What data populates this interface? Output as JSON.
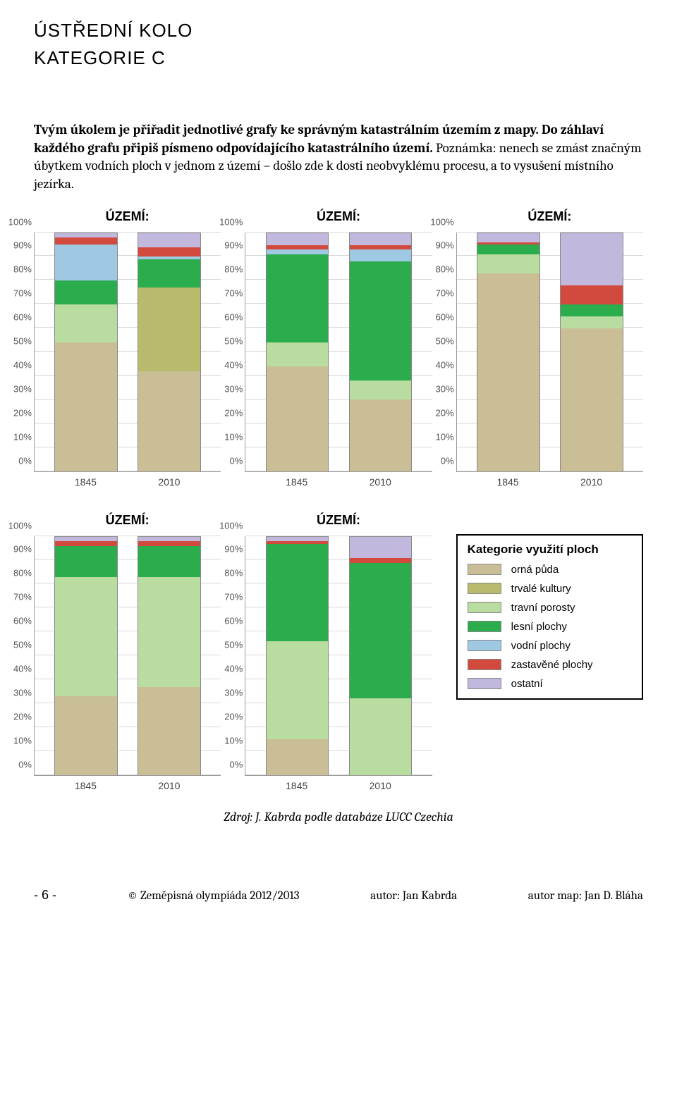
{
  "header": {
    "line1": "ÚSTŘEDNÍ KOLO",
    "line2": "KATEGORIE C"
  },
  "task": {
    "bold": "Tvým úkolem je přiřadit jednotlivé grafy ke správným katastrálním územím z mapy. Do záhlaví každého grafu připiš písmeno odpovídajícího katastrálního území.",
    "note": "Poznámka: nenech se zmást značným úbytkem vodních ploch v jednom z území – došlo zde k dosti neobvyklému procesu, a to vysušení místního jezírka."
  },
  "chart_common": {
    "uzemi_label": "ÚZEMÍ:",
    "tick_labels": [
      "0%",
      "10%",
      "20%",
      "30%",
      "40%",
      "50%",
      "60%",
      "70%",
      "80%",
      "90%",
      "100%"
    ],
    "tick_positions_pct": [
      0,
      10,
      20,
      30,
      40,
      50,
      60,
      70,
      80,
      90,
      100
    ],
    "x_labels": [
      "1845",
      "2010"
    ],
    "grid_color": "#d9d9d9",
    "font_family": "Arial"
  },
  "categories": {
    "order": [
      "orna",
      "trvale",
      "travni",
      "lesni",
      "vodni",
      "zast",
      "ostatni"
    ],
    "colors": {
      "orna": "#c9be95",
      "trvale": "#b7bb6b",
      "travni": "#b9dca0",
      "lesni": "#2bac4d",
      "vodni": "#9fc8e2",
      "zast": "#d24a3e",
      "ostatni": "#c2b8de"
    }
  },
  "charts": [
    {
      "id": "c1",
      "bars": [
        {
          "label": "1845",
          "seg": {
            "orna": 54,
            "trvale": 0,
            "travni": 16,
            "lesni": 10,
            "vodni": 15,
            "zast": 3,
            "ostatni": 2
          }
        },
        {
          "label": "2010",
          "seg": {
            "orna": 42,
            "trvale": 35,
            "travni": 0,
            "lesni": 12,
            "vodni": 1,
            "zast": 4,
            "ostatni": 6
          }
        }
      ]
    },
    {
      "id": "c2",
      "bars": [
        {
          "label": "1845",
          "seg": {
            "orna": 44,
            "trvale": 0,
            "travni": 10,
            "lesni": 37,
            "vodni": 2,
            "zast": 2,
            "ostatni": 5
          }
        },
        {
          "label": "2010",
          "seg": {
            "orna": 30,
            "trvale": 0,
            "travni": 8,
            "lesni": 50,
            "vodni": 5,
            "zast": 2,
            "ostatni": 5
          }
        }
      ]
    },
    {
      "id": "c3",
      "bars": [
        {
          "label": "1845",
          "seg": {
            "orna": 83,
            "trvale": 0,
            "travni": 8,
            "lesni": 4,
            "vodni": 0,
            "zast": 1,
            "ostatni": 4
          }
        },
        {
          "label": "2010",
          "seg": {
            "orna": 60,
            "trvale": 0,
            "travni": 5,
            "lesni": 5,
            "vodni": 0,
            "zast": 8,
            "ostatni": 22
          }
        }
      ]
    },
    {
      "id": "c4",
      "bars": [
        {
          "label": "1845",
          "seg": {
            "orna": 33,
            "trvale": 0,
            "travni": 50,
            "lesni": 13,
            "vodni": 0,
            "zast": 2,
            "ostatni": 2
          }
        },
        {
          "label": "2010",
          "seg": {
            "orna": 37,
            "trvale": 0,
            "travni": 46,
            "lesni": 13,
            "vodni": 0,
            "zast": 2,
            "ostatni": 2
          }
        }
      ]
    },
    {
      "id": "c5",
      "bars": [
        {
          "label": "1845",
          "seg": {
            "orna": 15,
            "trvale": 0,
            "travni": 41,
            "lesni": 41,
            "vodni": 0,
            "zast": 1,
            "ostatni": 2
          }
        },
        {
          "label": "2010",
          "seg": {
            "orna": 0,
            "trvale": 0,
            "travni": 32,
            "lesni": 57,
            "vodni": 0,
            "zast": 2,
            "ostatni": 9
          }
        }
      ]
    }
  ],
  "legend": {
    "title": "Kategorie využití ploch",
    "items": [
      {
        "key": "orna",
        "label": "orná půda"
      },
      {
        "key": "trvale",
        "label": "trvalé kultury"
      },
      {
        "key": "travni",
        "label": "travní porosty"
      },
      {
        "key": "lesni",
        "label": "lesní plochy"
      },
      {
        "key": "vodni",
        "label": "vodní plochy"
      },
      {
        "key": "zast",
        "label": "zastavěné plochy"
      },
      {
        "key": "ostatni",
        "label": "ostatní"
      }
    ]
  },
  "source": "Zdroj: J. Kabrda podle databáze LUCC Czechia",
  "footer": {
    "page": "- 6 -",
    "copyright": "© Zeměpisná olympiáda 2012/2013",
    "author": "autor: Jan Kabrda",
    "author_map": "autor map: Jan D. Bláha"
  }
}
